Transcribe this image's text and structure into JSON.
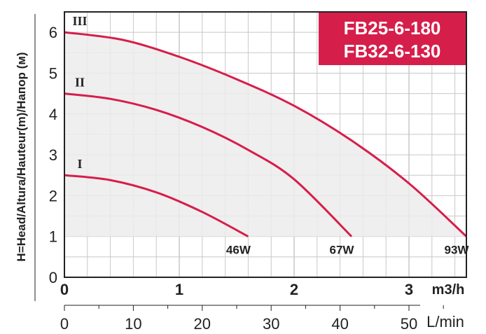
{
  "chart_data": {
    "type": "line",
    "ylabel": "H=Head/Altura/Hauteur(m)/Напор (м)",
    "xlabel": "m3/h",
    "xlabel_secondary": "L/min",
    "title_lines": [
      "FB25-6-180",
      "FB32-6-130"
    ],
    "xlim": [
      0,
      3.5
    ],
    "ylim": [
      0,
      6.5
    ],
    "x_ticks": [
      "0",
      "1",
      "2",
      "3"
    ],
    "y_ticks": [
      "0",
      "1",
      "2",
      "3",
      "4",
      "5",
      "6"
    ],
    "lmin_ticks": [
      "0",
      "10",
      "20",
      "30",
      "40",
      "50"
    ],
    "grid": true,
    "series": [
      {
        "name": "I",
        "power": "46W",
        "x": [
          0,
          0.4,
          0.8,
          1.2,
          1.6
        ],
        "y": [
          2.5,
          2.38,
          2.08,
          1.6,
          1.0
        ]
      },
      {
        "name": "II",
        "power": "67W",
        "x": [
          0,
          0.4,
          0.8,
          1.2,
          1.6,
          2.0,
          2.5
        ],
        "y": [
          4.5,
          4.37,
          4.1,
          3.68,
          3.12,
          2.4,
          1.0
        ]
      },
      {
        "name": "III",
        "power": "93W",
        "x": [
          0,
          0.5,
          1.0,
          1.5,
          2.0,
          2.5,
          3.0,
          3.5
        ],
        "y": [
          6.0,
          5.82,
          5.4,
          4.85,
          4.2,
          3.35,
          2.3,
          1.0
        ]
      }
    ],
    "colors": {
      "curve": "#d61e4b",
      "fill": "#ececec",
      "title_bg": "#d61e4b",
      "grid": "#c8c8c8",
      "axis": "#222222"
    }
  }
}
